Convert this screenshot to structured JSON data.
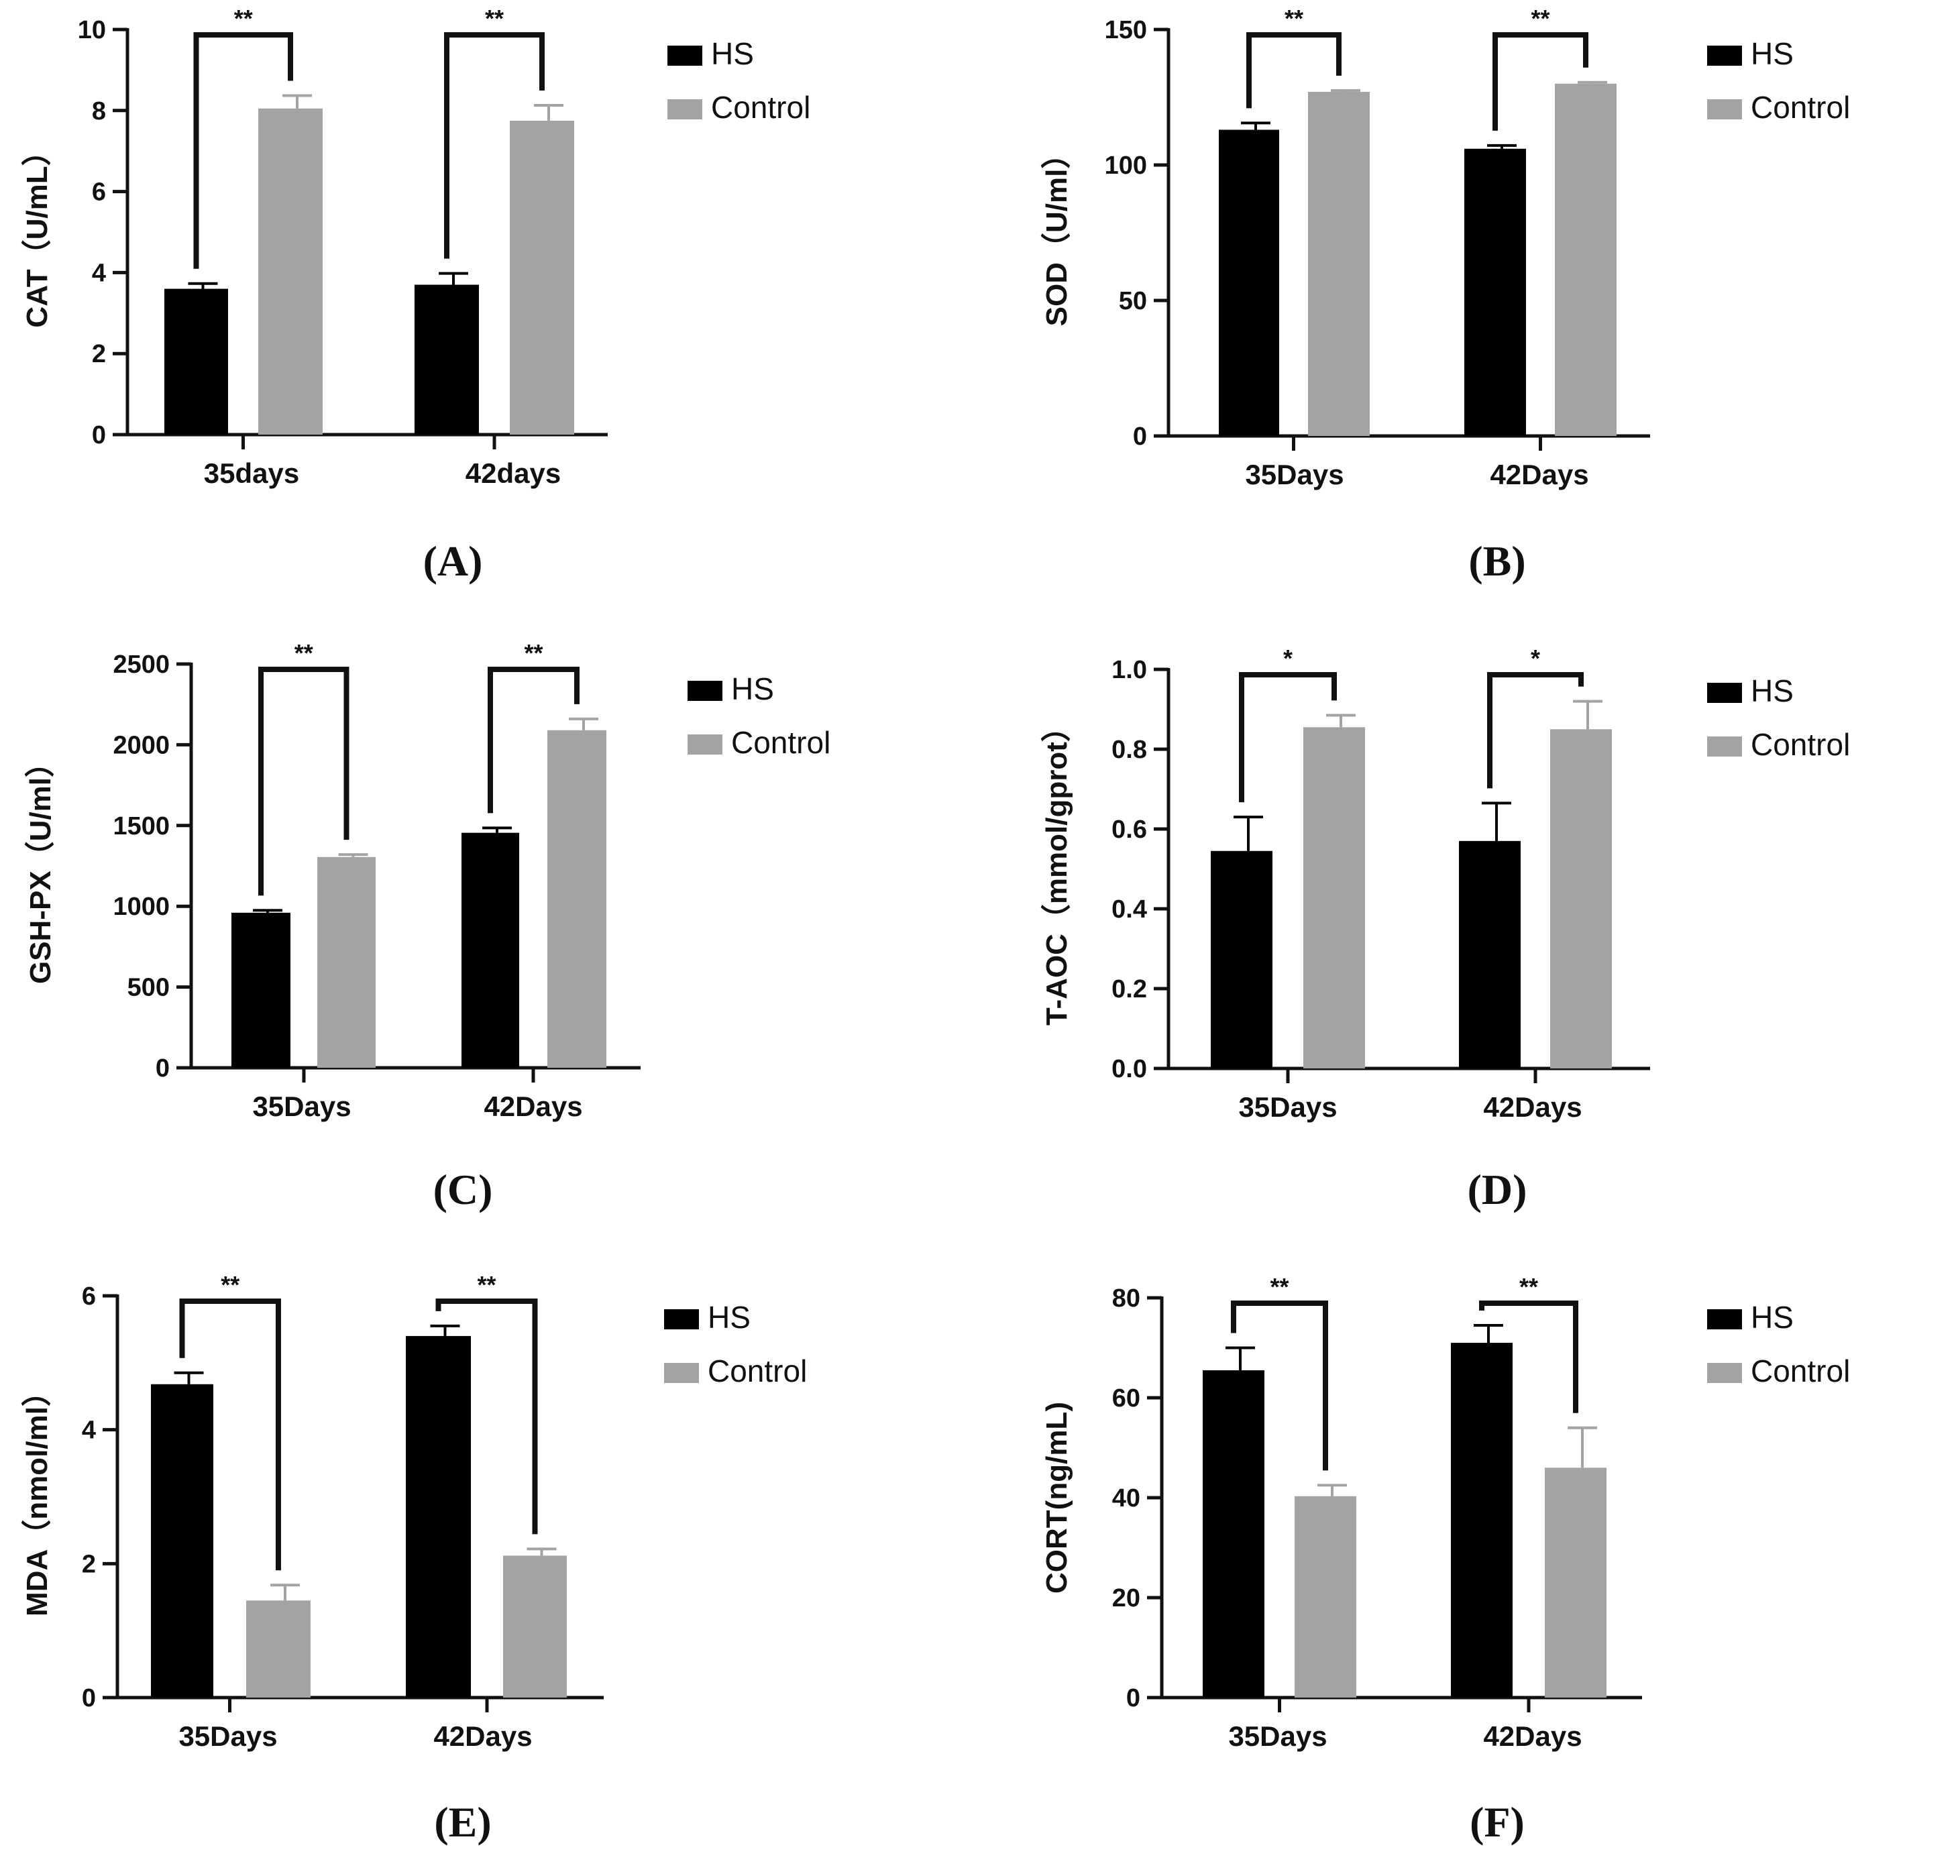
{
  "colors": {
    "hs": "#000000",
    "control": "#a3a3a6",
    "axis": "#111111"
  },
  "chart_data": [
    {
      "type": "bar",
      "panel": "(A)",
      "ylabel": "CAT（U/mL）",
      "categories": [
        "35days",
        "42days"
      ],
      "ylim": [
        0,
        10
      ],
      "yticks": [
        0,
        2,
        4,
        6,
        8,
        10
      ],
      "ytick_labels": [
        "0",
        "2",
        "4",
        "6",
        "8",
        "10"
      ],
      "series": [
        {
          "name": "HS",
          "values": [
            3.6,
            3.7
          ],
          "errors": [
            0.13,
            0.28
          ]
        },
        {
          "name": "Control",
          "values": [
            8.05,
            7.75
          ],
          "errors": [
            0.32,
            0.38
          ]
        }
      ],
      "significance": [
        "**",
        "**"
      ]
    },
    {
      "type": "bar",
      "panel": "(B)",
      "ylabel": "SOD（U/ml）",
      "categories": [
        "35Days",
        "42Days"
      ],
      "ylim": [
        0,
        150
      ],
      "yticks": [
        0,
        50,
        100,
        150
      ],
      "ytick_labels": [
        "0",
        "50",
        "100",
        "150"
      ],
      "series": [
        {
          "name": "HS",
          "values": [
            113,
            106
          ],
          "errors": [
            2.5,
            1.2
          ]
        },
        {
          "name": "Control",
          "values": [
            127,
            130
          ],
          "errors": [
            0.5,
            0.5
          ]
        }
      ],
      "significance": [
        "**",
        "**"
      ]
    },
    {
      "type": "bar",
      "panel": "(C)",
      "ylabel": "GSH-PX（U/ml）",
      "categories": [
        "35Days",
        "42Days"
      ],
      "ylim": [
        0,
        2500
      ],
      "yticks": [
        0,
        500,
        1000,
        1500,
        2000,
        2500
      ],
      "ytick_labels": [
        "0",
        "500",
        "1000",
        "1500",
        "2000",
        "2500"
      ],
      "series": [
        {
          "name": "HS",
          "values": [
            960,
            1455
          ],
          "errors": [
            15,
            30
          ]
        },
        {
          "name": "Control",
          "values": [
            1305,
            2090
          ],
          "errors": [
            15,
            70
          ]
        }
      ],
      "significance": [
        "**",
        "**"
      ]
    },
    {
      "type": "bar",
      "panel": "(D)",
      "ylabel": "T-AOC（mmol/gprot）",
      "categories": [
        "35Days",
        "42Days"
      ],
      "ylim": [
        0,
        1.0
      ],
      "yticks": [
        0,
        0.2,
        0.4,
        0.6,
        0.8,
        1.0
      ],
      "ytick_labels": [
        "0.0",
        "0.2",
        "0.4",
        "0.6",
        "0.8",
        "1.0"
      ],
      "series": [
        {
          "name": "HS",
          "values": [
            0.545,
            0.57
          ],
          "errors": [
            0.085,
            0.095
          ]
        },
        {
          "name": "Control",
          "values": [
            0.855,
            0.85
          ],
          "errors": [
            0.03,
            0.07
          ]
        }
      ],
      "significance": [
        "*",
        "*"
      ]
    },
    {
      "type": "bar",
      "panel": "(E)",
      "ylabel": "MDA（nmol/ml）",
      "categories": [
        "35Days",
        "42Days"
      ],
      "ylim": [
        0,
        6
      ],
      "yticks": [
        0,
        2,
        4,
        6
      ],
      "ytick_labels": [
        "0",
        "2",
        "4",
        "6"
      ],
      "series": [
        {
          "name": "HS",
          "values": [
            4.68,
            5.4
          ],
          "errors": [
            0.17,
            0.15
          ]
        },
        {
          "name": "Control",
          "values": [
            1.45,
            2.12
          ],
          "errors": [
            0.23,
            0.1
          ]
        }
      ],
      "significance": [
        "**",
        "**"
      ]
    },
    {
      "type": "bar",
      "panel": "(F)",
      "ylabel": "CORT(ng/mL)",
      "categories": [
        "35Days",
        "42Days"
      ],
      "ylim": [
        0,
        80
      ],
      "yticks": [
        0,
        20,
        40,
        60,
        80
      ],
      "ytick_labels": [
        "0",
        "20",
        "40",
        "60",
        "80"
      ],
      "series": [
        {
          "name": "HS",
          "values": [
            65.5,
            71
          ],
          "errors": [
            4.5,
            3.5
          ]
        },
        {
          "name": "Control",
          "values": [
            40.3,
            46
          ],
          "errors": [
            2.2,
            8
          ]
        }
      ],
      "significance": [
        "**",
        "**"
      ]
    }
  ]
}
